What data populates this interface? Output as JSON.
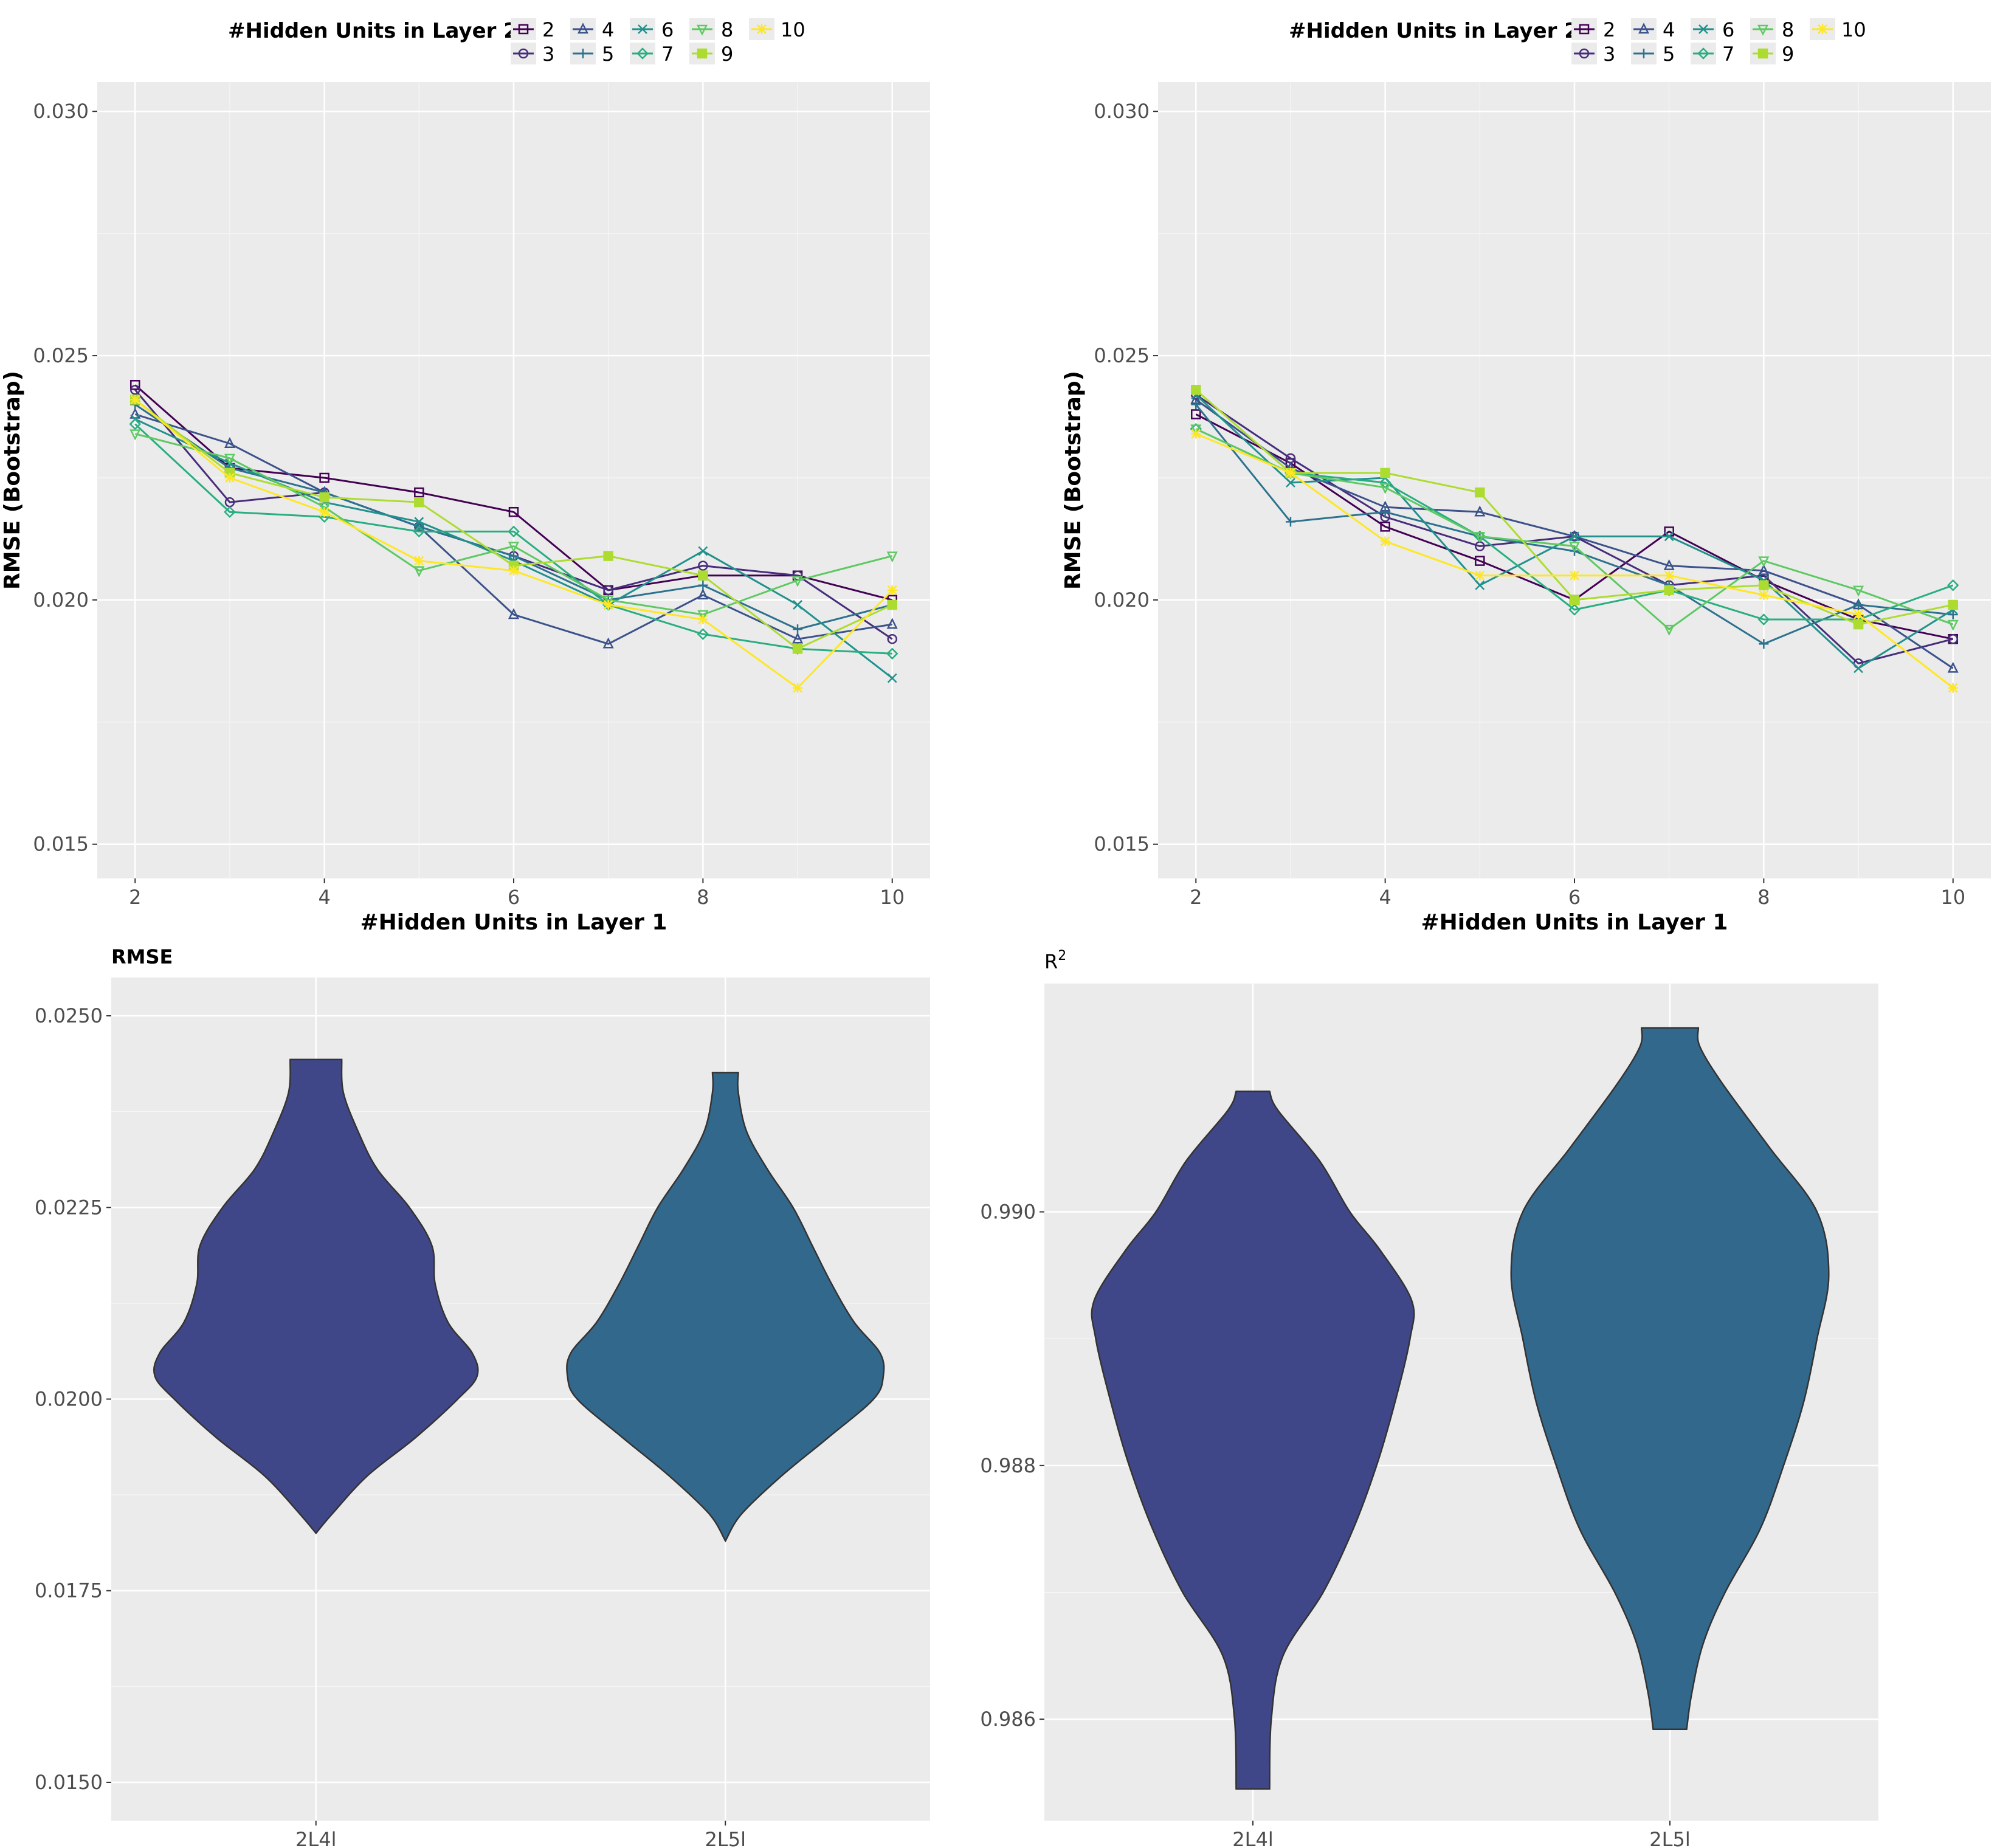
{
  "colors": {
    "panel_bg": "#ebebeb",
    "grid": "#ffffff",
    "tick_text": "#4d4d4d",
    "outline": "#333333",
    "violin_2L4l": "#404788",
    "violin_2L5l": "#33688d"
  },
  "legend": {
    "title": "#Hidden Units in Layer 2",
    "entries": [
      {
        "label": "2",
        "color": "#440154",
        "shape": "square"
      },
      {
        "label": "3",
        "color": "#472d7b",
        "shape": "circle"
      },
      {
        "label": "4",
        "color": "#3b528b",
        "shape": "triangle"
      },
      {
        "label": "5",
        "color": "#2c728e",
        "shape": "plus"
      },
      {
        "label": "6",
        "color": "#21918c",
        "shape": "cross"
      },
      {
        "label": "7",
        "color": "#28ae80",
        "shape": "diamond"
      },
      {
        "label": "8",
        "color": "#5ec962",
        "shape": "triangle-down"
      },
      {
        "label": "9",
        "color": "#addc30",
        "shape": "square-open"
      },
      {
        "label": "10",
        "color": "#fde725",
        "shape": "star"
      }
    ]
  },
  "chart_data": [
    {
      "type": "line",
      "title": "",
      "xlabel": "#Hidden Units in Layer 1",
      "ylabel": "RMSE (Bootstrap)",
      "xlim": [
        1.6,
        10.4
      ],
      "ylim": [
        0.0143,
        0.0306
      ],
      "xticks": [
        2,
        4,
        6,
        8,
        10
      ],
      "xtick_labels": [
        "2",
        "4",
        "6",
        "8",
        "10"
      ],
      "yticks": [
        0.015,
        0.02,
        0.025,
        0.03
      ],
      "ytick_labels": [
        "0.015",
        "0.020",
        "0.025",
        "0.030"
      ],
      "x": [
        2,
        3,
        4,
        5,
        6,
        7,
        8,
        9,
        10
      ],
      "series": [
        {
          "name": "2",
          "values": [
            0.0244,
            0.0227,
            0.0225,
            0.0222,
            0.0218,
            0.0202,
            0.0205,
            0.0205,
            0.02
          ]
        },
        {
          "name": "3",
          "values": [
            0.0243,
            0.022,
            0.0222,
            0.0215,
            0.0209,
            0.0202,
            0.0207,
            0.0205,
            0.0192
          ]
        },
        {
          "name": "4",
          "values": [
            0.0238,
            0.0232,
            0.0222,
            0.0215,
            0.0197,
            0.0191,
            0.0201,
            0.0192,
            0.0195
          ]
        },
        {
          "name": "5",
          "values": [
            0.024,
            0.0227,
            0.0222,
            0.0215,
            0.0209,
            0.02,
            0.0203,
            0.0194,
            0.0199
          ]
        },
        {
          "name": "6",
          "values": [
            0.0237,
            0.0228,
            0.022,
            0.0216,
            0.0208,
            0.0199,
            0.021,
            0.0199,
            0.0184
          ]
        },
        {
          "name": "7",
          "values": [
            0.0236,
            0.0218,
            0.0217,
            0.0214,
            0.0214,
            0.0199,
            0.0193,
            0.019,
            0.0189
          ]
        },
        {
          "name": "8",
          "values": [
            0.0234,
            0.0229,
            0.0219,
            0.0206,
            0.0211,
            0.02,
            0.0197,
            0.0204,
            0.0209
          ]
        },
        {
          "name": "9",
          "values": [
            0.0241,
            0.0226,
            0.0221,
            0.022,
            0.0207,
            0.0209,
            0.0205,
            0.019,
            0.0199
          ]
        },
        {
          "name": "10",
          "values": [
            0.0241,
            0.0225,
            0.0218,
            0.0208,
            0.0206,
            0.0199,
            0.0196,
            0.0182,
            0.0202
          ]
        }
      ]
    },
    {
      "type": "line",
      "title": "",
      "xlabel": "#Hidden Units in Layer 1",
      "ylabel": "RMSE (Bootstrap)",
      "xlim": [
        1.6,
        10.4
      ],
      "ylim": [
        0.0143,
        0.0306
      ],
      "xticks": [
        2,
        4,
        6,
        8,
        10
      ],
      "xtick_labels": [
        "2",
        "4",
        "6",
        "8",
        "10"
      ],
      "yticks": [
        0.015,
        0.02,
        0.025,
        0.03
      ],
      "ytick_labels": [
        "0.015",
        "0.020",
        "0.025",
        "0.030"
      ],
      "x": [
        2,
        3,
        4,
        5,
        6,
        7,
        8,
        9,
        10
      ],
      "series": [
        {
          "name": "2",
          "values": [
            0.0238,
            0.0228,
            0.0215,
            0.0208,
            0.02,
            0.0214,
            0.0204,
            0.0196,
            0.0192
          ]
        },
        {
          "name": "3",
          "values": [
            0.0242,
            0.0229,
            0.0217,
            0.0211,
            0.0213,
            0.0203,
            0.0205,
            0.0187,
            0.0192
          ]
        },
        {
          "name": "4",
          "values": [
            0.0241,
            0.0227,
            0.0219,
            0.0218,
            0.0213,
            0.0207,
            0.0206,
            0.0199,
            0.0186
          ]
        },
        {
          "name": "5",
          "values": [
            0.024,
            0.0216,
            0.0218,
            0.0213,
            0.021,
            0.0203,
            0.0191,
            0.0199,
            0.0197
          ]
        },
        {
          "name": "6",
          "values": [
            0.0242,
            0.0224,
            0.0225,
            0.0203,
            0.0213,
            0.0213,
            0.0204,
            0.0186,
            0.0198
          ]
        },
        {
          "name": "7",
          "values": [
            0.0235,
            0.0226,
            0.0224,
            0.0213,
            0.0198,
            0.0202,
            0.0196,
            0.0196,
            0.0203
          ]
        },
        {
          "name": "8",
          "values": [
            0.0235,
            0.0226,
            0.0223,
            0.0213,
            0.0211,
            0.0194,
            0.0208,
            0.0202,
            0.0195
          ]
        },
        {
          "name": "9",
          "values": [
            0.0243,
            0.0226,
            0.0226,
            0.0222,
            0.02,
            0.0202,
            0.0203,
            0.0195,
            0.0199
          ]
        },
        {
          "name": "10",
          "values": [
            0.0234,
            0.0226,
            0.0212,
            0.0205,
            0.0205,
            0.0205,
            0.0201,
            0.0197,
            0.0182
          ]
        }
      ]
    },
    {
      "type": "violin",
      "title": "RMSE",
      "xlabel": "",
      "ylabel": "",
      "categories": [
        "2L4l",
        "2L5l"
      ],
      "ylim": [
        0.0145,
        0.0255
      ],
      "yticks": [
        0.015,
        0.0175,
        0.02,
        0.0225,
        0.025
      ],
      "ytick_labels": [
        "0.0150",
        "0.0175",
        "0.0200",
        "0.0225",
        "0.0250"
      ],
      "violins": [
        {
          "name": "2L4l",
          "min": 0.01825,
          "max": 0.02443,
          "profile": [
            [
              0.01825,
              0.0
            ],
            [
              0.0185,
              0.1
            ],
            [
              0.019,
              0.32
            ],
            [
              0.0195,
              0.62
            ],
            [
              0.02,
              0.88
            ],
            [
              0.0203,
              1.0
            ],
            [
              0.0206,
              0.97
            ],
            [
              0.021,
              0.82
            ],
            [
              0.0215,
              0.74
            ],
            [
              0.022,
              0.72
            ],
            [
              0.0225,
              0.58
            ],
            [
              0.023,
              0.38
            ],
            [
              0.0235,
              0.26
            ],
            [
              0.024,
              0.17
            ],
            [
              0.02443,
              0.16
            ]
          ]
        },
        {
          "name": "2L5l",
          "min": 0.01815,
          "max": 0.02426,
          "profile": [
            [
              0.01815,
              0.0
            ],
            [
              0.0185,
              0.1
            ],
            [
              0.019,
              0.35
            ],
            [
              0.0195,
              0.64
            ],
            [
              0.02,
              0.92
            ],
            [
              0.0203,
              0.98
            ],
            [
              0.0206,
              0.96
            ],
            [
              0.021,
              0.8
            ],
            [
              0.0215,
              0.66
            ],
            [
              0.022,
              0.54
            ],
            [
              0.0225,
              0.42
            ],
            [
              0.023,
              0.26
            ],
            [
              0.0235,
              0.13
            ],
            [
              0.024,
              0.08
            ],
            [
              0.02426,
              0.08
            ]
          ]
        }
      ]
    },
    {
      "type": "violin",
      "title": "R",
      "title_sup": "2",
      "xlabel": "",
      "ylabel": "",
      "categories": [
        "2L4l",
        "2L5l"
      ],
      "ylim": [
        0.9852,
        0.9918
      ],
      "yticks": [
        0.986,
        0.988,
        0.99
      ],
      "ytick_labels": [
        "0.986",
        "0.988",
        "0.990"
      ],
      "violins": [
        {
          "name": "2L4l",
          "min": 0.98545,
          "max": 0.99095,
          "profile": [
            [
              0.98545,
              0.1
            ],
            [
              0.986,
              0.11
            ],
            [
              0.9865,
              0.18
            ],
            [
              0.987,
              0.42
            ],
            [
              0.9875,
              0.6
            ],
            [
              0.988,
              0.74
            ],
            [
              0.9885,
              0.85
            ],
            [
              0.989,
              0.94
            ],
            [
              0.9893,
              0.95
            ],
            [
              0.9897,
              0.76
            ],
            [
              0.99,
              0.58
            ],
            [
              0.9904,
              0.4
            ],
            [
              0.9908,
              0.15
            ],
            [
              0.99095,
              0.1
            ]
          ]
        },
        {
          "name": "2L5l",
          "min": 0.98592,
          "max": 0.99145,
          "profile": [
            [
              0.98592,
              0.1
            ],
            [
              0.9862,
              0.13
            ],
            [
              0.9866,
              0.2
            ],
            [
              0.987,
              0.33
            ],
            [
              0.9875,
              0.54
            ],
            [
              0.988,
              0.68
            ],
            [
              0.9885,
              0.8
            ],
            [
              0.989,
              0.88
            ],
            [
              0.9895,
              0.95
            ],
            [
              0.99,
              0.88
            ],
            [
              0.9905,
              0.6
            ],
            [
              0.991,
              0.32
            ],
            [
              0.9913,
              0.18
            ],
            [
              0.99145,
              0.17
            ]
          ]
        }
      ]
    }
  ]
}
